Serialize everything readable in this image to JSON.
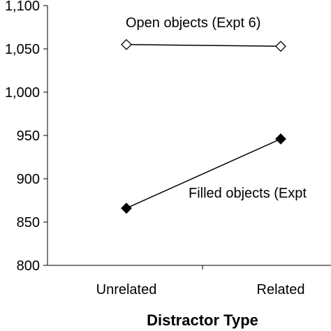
{
  "chart_data": {
    "type": "line",
    "xlabel": "Distractor Type",
    "ylabel": "",
    "ylim": [
      800,
      1100
    ],
    "yticks": [
      800,
      850,
      900,
      950,
      "1,000",
      "1,050",
      "1,100"
    ],
    "ytick_values": [
      800,
      850,
      900,
      950,
      1000,
      1050,
      1100
    ],
    "categories": [
      "Unrelated",
      "Related"
    ],
    "grid": false,
    "series": [
      {
        "name": "Open objects (Expt 6)",
        "values": [
          1055,
          1053
        ],
        "marker": "open-diamond",
        "color": "#000000"
      },
      {
        "name": "Filled objects (Expt",
        "values": [
          866,
          946
        ],
        "marker": "filled-diamond",
        "color": "#000000"
      }
    ]
  }
}
